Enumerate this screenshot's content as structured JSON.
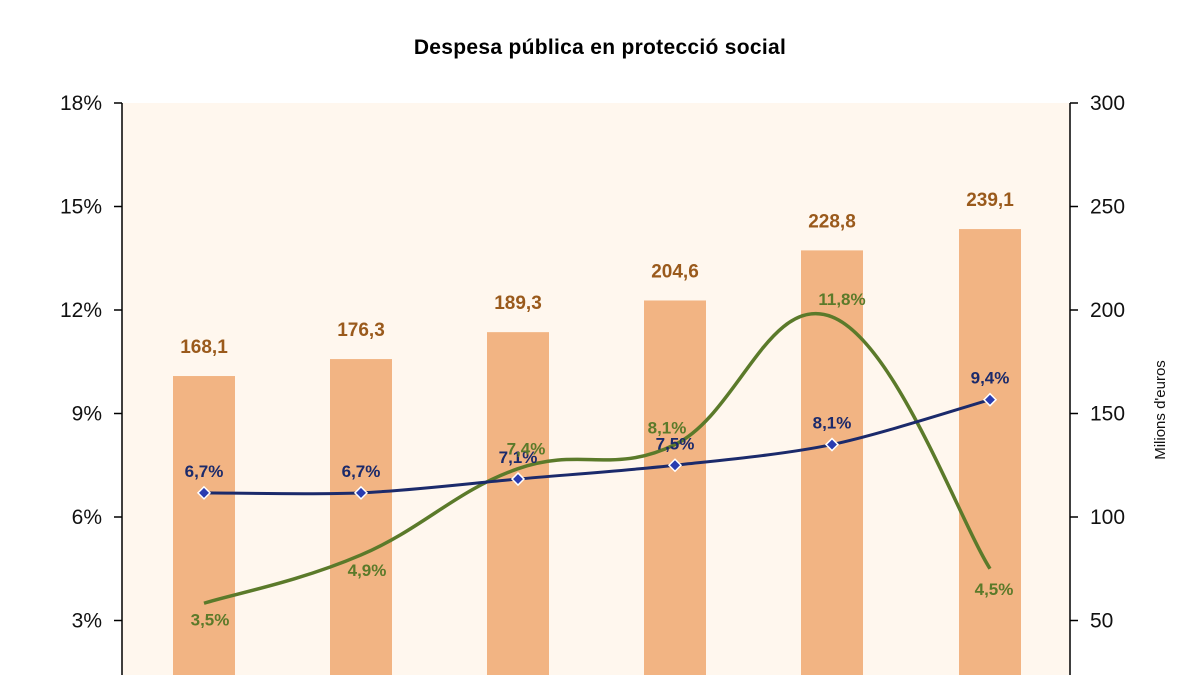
{
  "chart_data": {
    "type": "bar",
    "title": "Despesa pública en protecció social",
    "categories": [
      "",
      "",
      "",
      "",
      "",
      ""
    ],
    "y_left": {
      "ticks": [
        "18%",
        "15%",
        "12%",
        "9%",
        "6%",
        "3%"
      ],
      "range": [
        0,
        18
      ]
    },
    "y_right": {
      "label": "Milions d'euros",
      "ticks": [
        "300",
        "250",
        "200",
        "150",
        "100",
        "50"
      ],
      "range": [
        0,
        300
      ]
    },
    "grid": false,
    "series": [
      {
        "type": "bar",
        "axis": "right",
        "color": "#f2b483",
        "values": [
          168.1,
          176.3,
          189.3,
          204.6,
          228.8,
          239.1
        ],
        "labels": [
          "168,1",
          "176,3",
          "189,3",
          "204,6",
          "228,8",
          "239,1"
        ]
      },
      {
        "type": "line",
        "axis": "left",
        "color": "#1b2a6b",
        "marker": "diamond",
        "values": [
          6.7,
          6.7,
          7.1,
          7.5,
          8.1,
          9.4
        ],
        "labels": [
          "6,7%",
          "6,7%",
          "7,1%",
          "7,5%",
          "8,1%",
          "9,4%"
        ]
      },
      {
        "type": "line",
        "axis": "left",
        "color": "#5b7a2a",
        "smooth": true,
        "values": [
          3.5,
          4.9,
          7.4,
          8.1,
          11.8,
          4.5
        ],
        "labels": [
          "3,5%",
          "4,9%",
          "7,4%",
          "8,1%",
          "11,8%",
          "4,5%"
        ]
      }
    ]
  }
}
